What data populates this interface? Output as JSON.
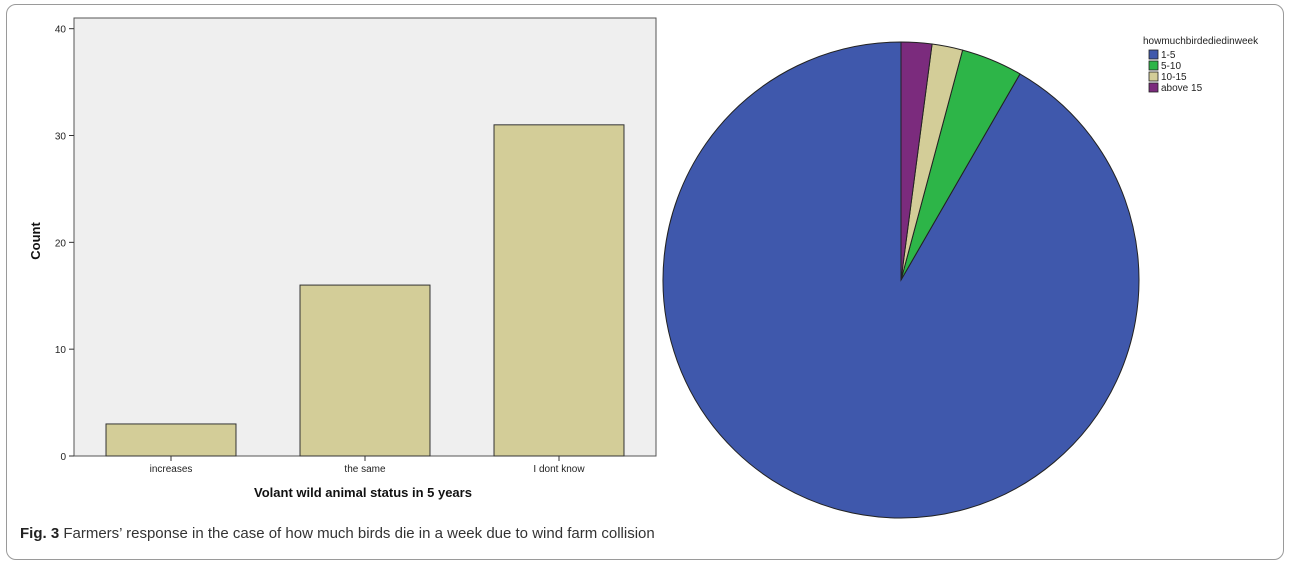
{
  "caption": {
    "label": "Fig. 3",
    "text": "Farmers’ response in the case of how much birds die in a week due to wind farm collision"
  },
  "chart_data": [
    {
      "type": "bar",
      "title": "",
      "xlabel": "Volant wild animal status in 5 years",
      "ylabel": "Count",
      "categories": [
        "increases",
        "the same",
        "I dont know"
      ],
      "values": [
        3,
        16,
        31
      ],
      "ylim": [
        0,
        41
      ],
      "yticks": [
        0,
        10,
        20,
        30,
        40
      ],
      "bar_color": "#d3cd98",
      "plot_background": "#efefef",
      "grid": false
    },
    {
      "type": "pie",
      "title": "",
      "legend_title": "howmuchbirdediedinweek",
      "legend_position": "top-right",
      "categories": [
        "1-5",
        "5-10",
        "10-15",
        "above 15"
      ],
      "values": [
        44,
        2,
        1,
        1
      ],
      "colors": [
        "#3f58ac",
        "#2db548",
        "#d3cd98",
        "#7b2b7d"
      ],
      "start_angle": "12 o'clock",
      "direction": "counterclockwise"
    }
  ]
}
